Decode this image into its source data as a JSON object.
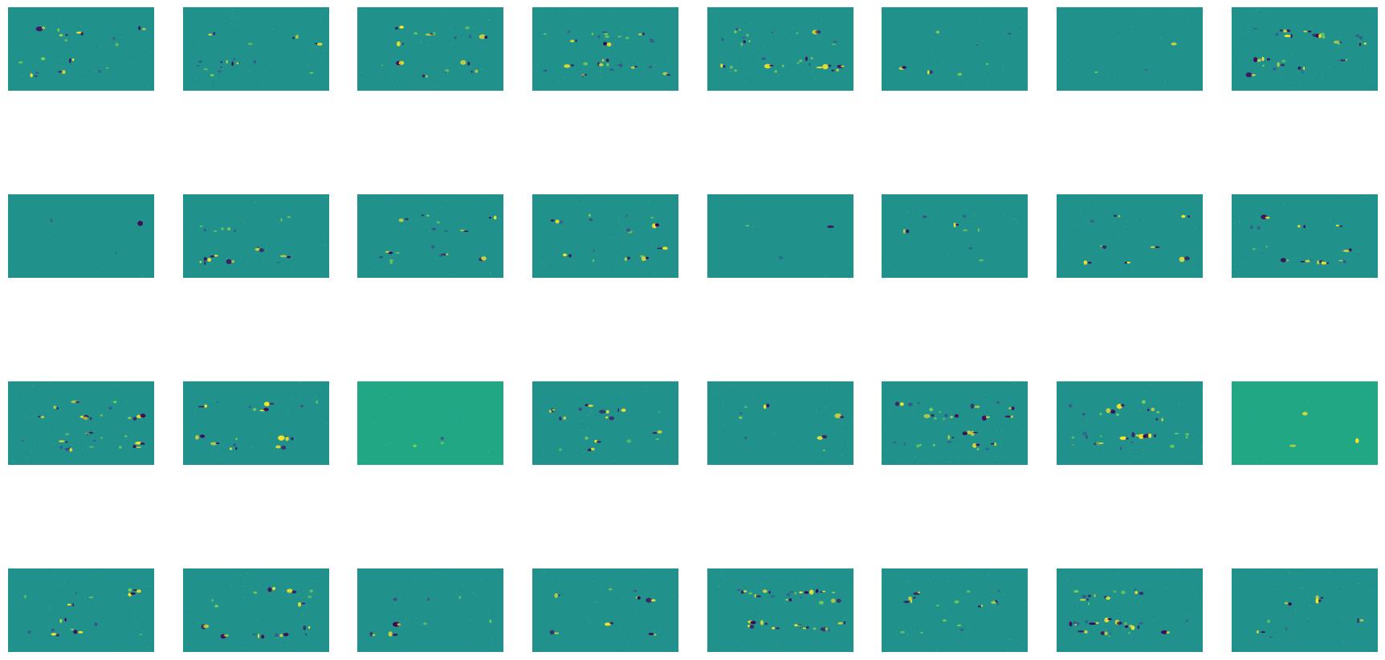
{
  "figure": {
    "rows": 4,
    "columns": 8,
    "colormap": "viridis",
    "colors": {
      "page_background": "#ffffff",
      "field_neutral": "#21918c",
      "field_neutral_bright": "#22a785",
      "polarity_positive": "#fde725",
      "polarity_positive_mid": "#7ad151",
      "polarity_negative": "#440154",
      "polarity_negative_mid": "#3b528b"
    },
    "panels": [
      {
        "activity": "medium",
        "background": "neutral"
      },
      {
        "activity": "medium",
        "background": "neutral"
      },
      {
        "activity": "medium",
        "background": "neutral"
      },
      {
        "activity": "high",
        "background": "neutral"
      },
      {
        "activity": "high",
        "background": "neutral"
      },
      {
        "activity": "low",
        "background": "neutral"
      },
      {
        "activity": "very-low",
        "background": "neutral"
      },
      {
        "activity": "high",
        "background": "neutral"
      },
      {
        "activity": "very-low",
        "background": "neutral"
      },
      {
        "activity": "medium",
        "background": "neutral"
      },
      {
        "activity": "medium",
        "background": "neutral"
      },
      {
        "activity": "medium",
        "background": "neutral"
      },
      {
        "activity": "very-low",
        "background": "neutral"
      },
      {
        "activity": "low",
        "background": "neutral"
      },
      {
        "activity": "low",
        "background": "neutral"
      },
      {
        "activity": "medium",
        "background": "neutral"
      },
      {
        "activity": "high",
        "background": "neutral"
      },
      {
        "activity": "medium",
        "background": "neutral"
      },
      {
        "activity": "very-low",
        "background": "bright"
      },
      {
        "activity": "medium",
        "background": "neutral"
      },
      {
        "activity": "low",
        "background": "neutral"
      },
      {
        "activity": "high",
        "background": "neutral"
      },
      {
        "activity": "high",
        "background": "neutral"
      },
      {
        "activity": "very-low",
        "background": "bright"
      },
      {
        "activity": "medium",
        "background": "neutral"
      },
      {
        "activity": "medium",
        "background": "neutral"
      },
      {
        "activity": "low",
        "background": "neutral"
      },
      {
        "activity": "low",
        "background": "neutral"
      },
      {
        "activity": "high",
        "background": "neutral"
      },
      {
        "activity": "medium",
        "background": "neutral"
      },
      {
        "activity": "high",
        "background": "neutral"
      },
      {
        "activity": "low",
        "background": "neutral"
      }
    ]
  }
}
